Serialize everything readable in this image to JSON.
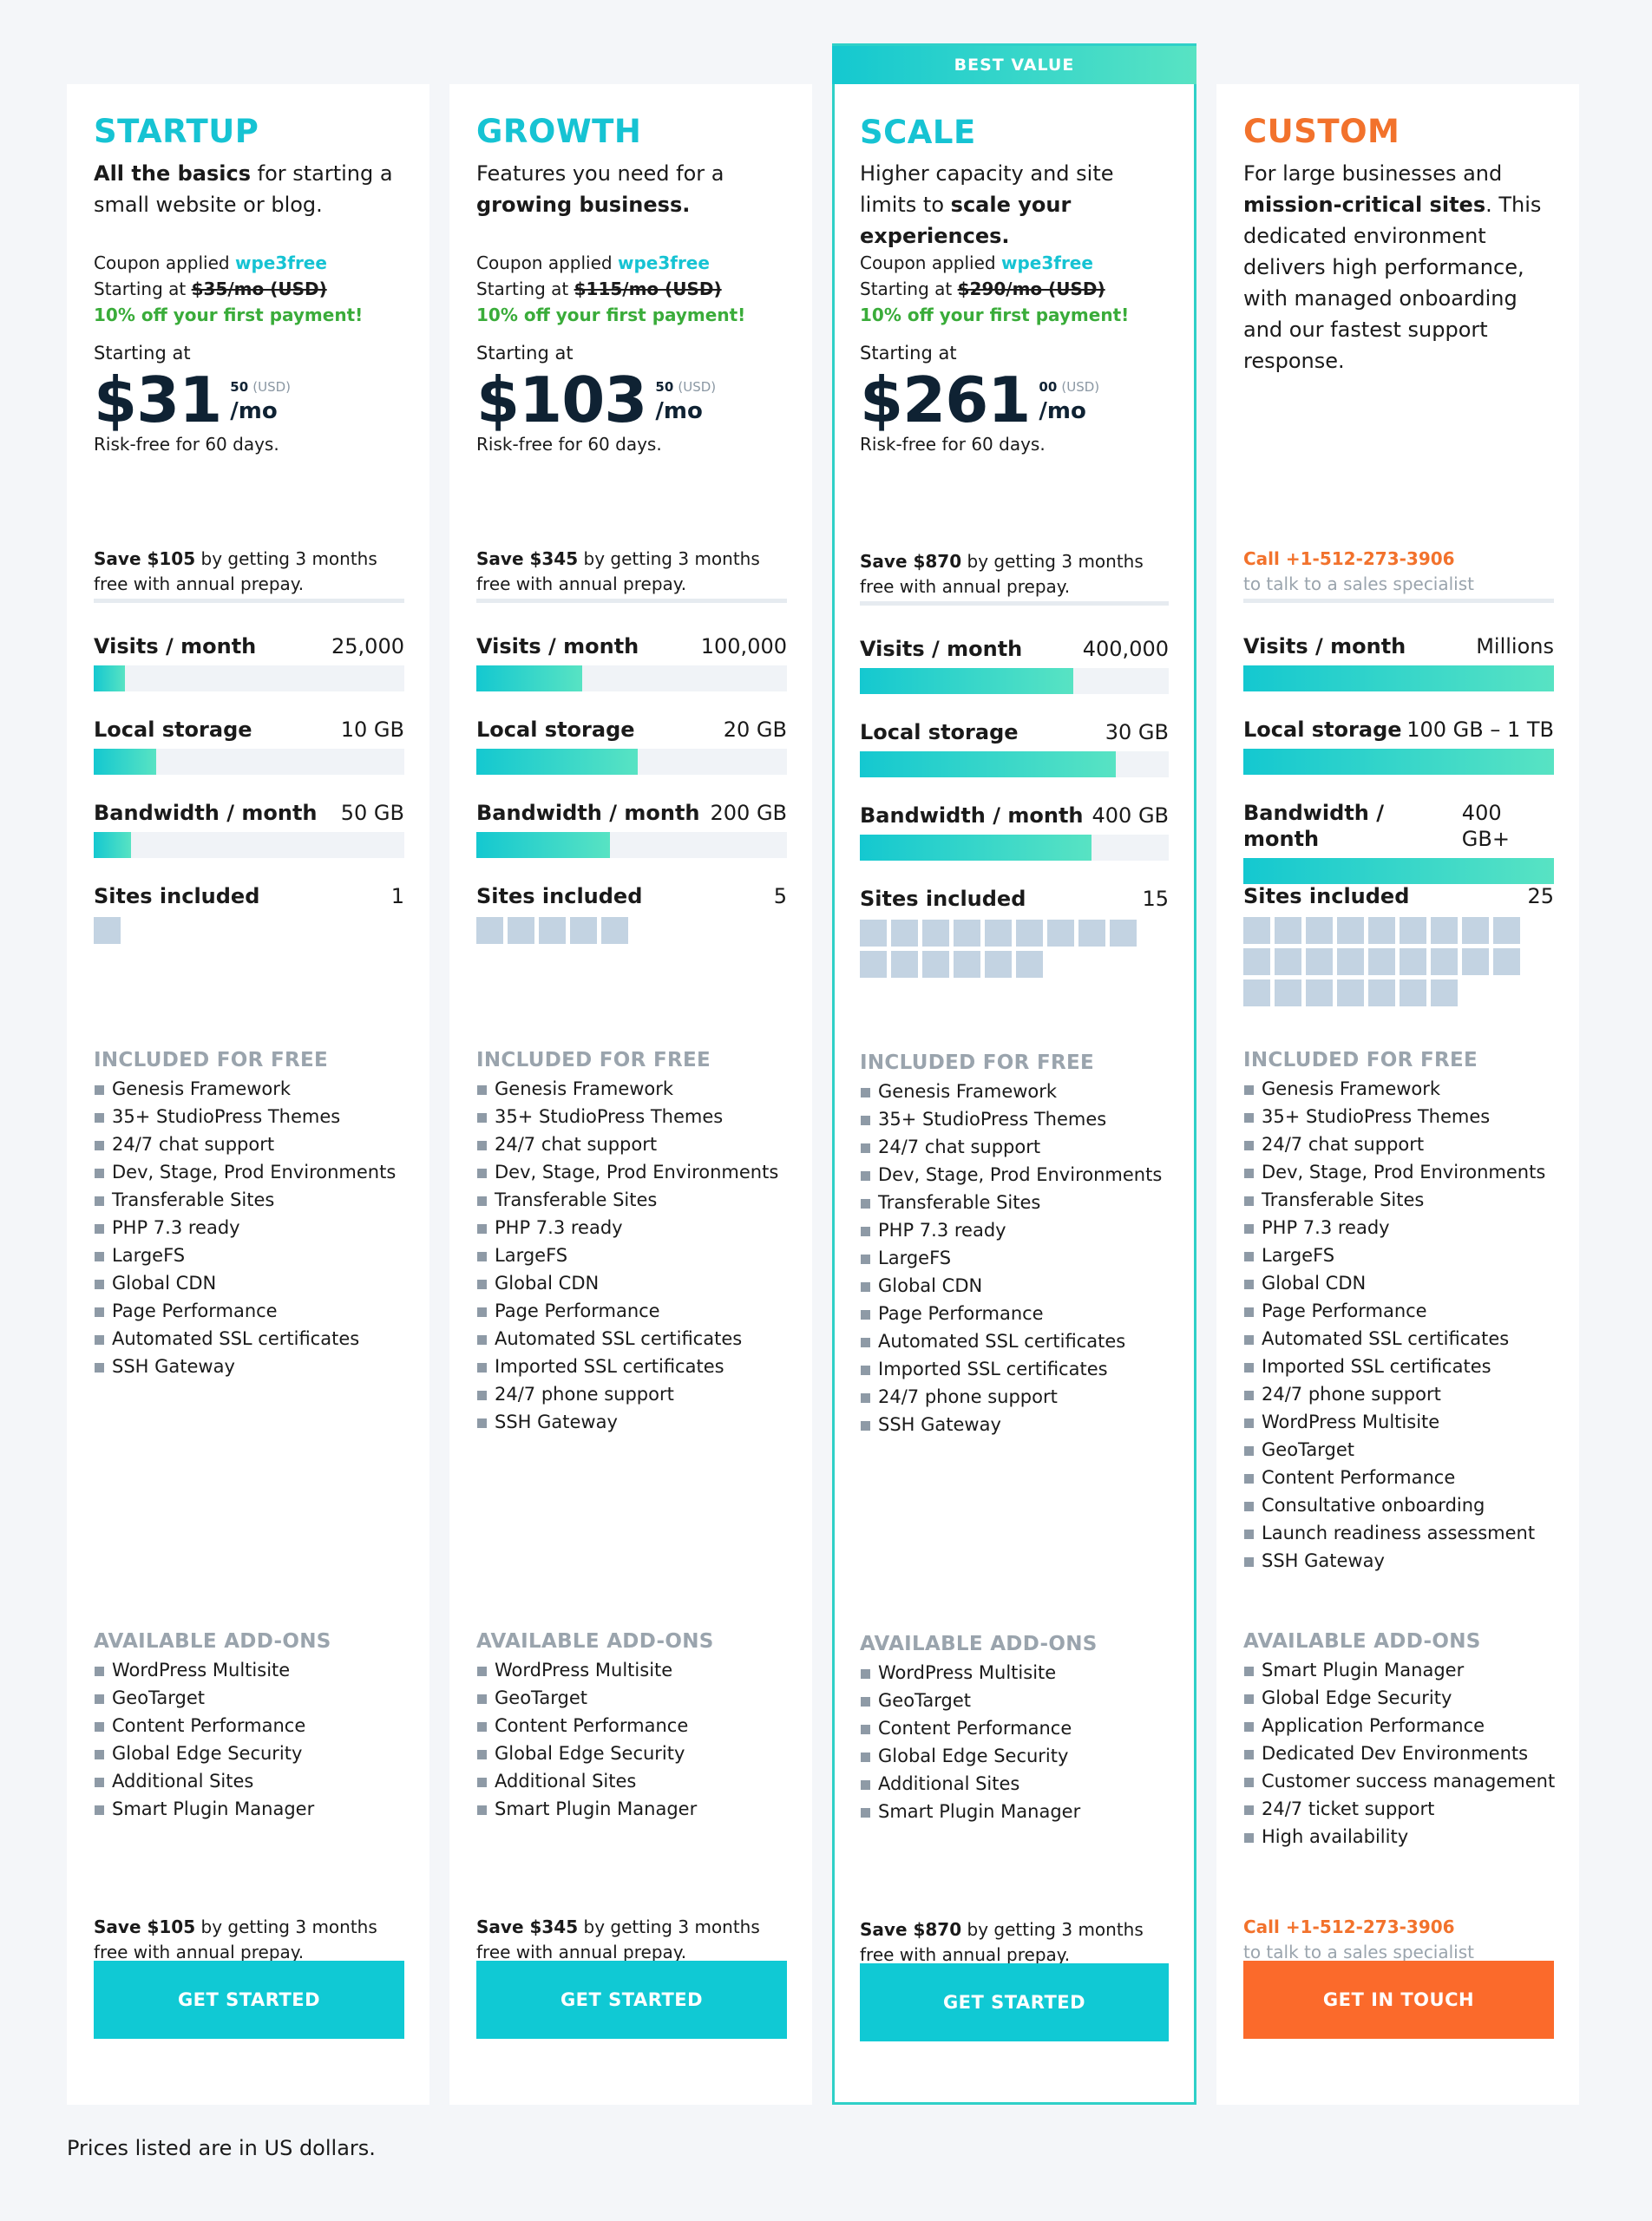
{
  "plans": [
    {
      "name": "STARTUP",
      "tagline_bold": "All the basics",
      "tagline_rest": " for starting a small website or blog.",
      "coupon_text": "Coupon applied ",
      "coupon_code": "wpe3free",
      "starting_text": "Starting at ",
      "old_price": "$35/mo (USD)",
      "discount": "10% off your first payment!",
      "starting_label": "Starting at",
      "price": "$31",
      "cents": "50",
      "currency": "(USD)",
      "per": "/mo",
      "riskfree": "Risk-free for 60 days.",
      "save_bold": "Save $105",
      "save_rest": " by getting 3 months free with annual prepay.",
      "visits_label": "Visits / month",
      "visits": "25,000",
      "visits_fill": 0.1,
      "storage_label": "Local storage",
      "storage": "10 GB",
      "storage_fill": 0.2,
      "bandwidth_label": "Bandwidth / month",
      "bandwidth": "50 GB",
      "bandwidth_fill": 0.12,
      "sites_label": "Sites included",
      "sites": "1",
      "sites_count": 1,
      "included_title": "INCLUDED FOR FREE",
      "included": [
        "Genesis Framework",
        "35+ StudioPress Themes",
        "24/7 chat support",
        "Dev, Stage, Prod Environments",
        "Transferable Sites",
        "PHP 7.3 ready",
        "LargeFS",
        "Global CDN",
        "Page Performance",
        "Automated SSL certificates",
        "SSH Gateway"
      ],
      "addons_title": "AVAILABLE ADD-ONS",
      "addons": [
        "WordPress Multisite",
        "GeoTarget",
        "Content Performance",
        "Global Edge Security",
        "Additional Sites",
        "Smart Plugin Manager"
      ],
      "cta": "GET STARTED"
    },
    {
      "name": "GROWTH",
      "tagline_pre": "Features you need for a ",
      "tagline_bold": "growing business.",
      "coupon_text": "Coupon applied ",
      "coupon_code": "wpe3free",
      "starting_text": "Starting at ",
      "old_price": "$115/mo (USD)",
      "discount": "10% off your first payment!",
      "starting_label": "Starting at",
      "price": "$103",
      "cents": "50",
      "currency": "(USD)",
      "per": "/mo",
      "riskfree": "Risk-free for 60 days.",
      "save_bold": "Save $345",
      "save_rest": " by getting 3 months free with annual prepay.",
      "visits_label": "Visits / month",
      "visits": "100,000",
      "visits_fill": 0.34,
      "storage_label": "Local storage",
      "storage": "20 GB",
      "storage_fill": 0.52,
      "bandwidth_label": "Bandwidth / month",
      "bandwidth": "200 GB",
      "bandwidth_fill": 0.43,
      "sites_label": "Sites included",
      "sites": "5",
      "sites_count": 5,
      "included_title": "INCLUDED FOR FREE",
      "included": [
        "Genesis Framework",
        "35+ StudioPress Themes",
        "24/7 chat support",
        "Dev, Stage, Prod Environments",
        "Transferable Sites",
        "PHP 7.3 ready",
        "LargeFS",
        "Global CDN",
        "Page Performance",
        "Automated SSL certificates",
        "Imported SSL certificates",
        "24/7 phone support",
        "SSH Gateway"
      ],
      "addons_title": "AVAILABLE ADD-ONS",
      "addons": [
        "WordPress Multisite",
        "GeoTarget",
        "Content Performance",
        "Global Edge Security",
        "Additional Sites",
        "Smart Plugin Manager"
      ],
      "cta": "GET STARTED"
    },
    {
      "badge": "BEST VALUE",
      "name": "SCALE",
      "tagline_pre": "Higher capacity and site limits to ",
      "tagline_bold": "scale your experiences.",
      "coupon_text": "Coupon applied ",
      "coupon_code": "wpe3free",
      "starting_text": "Starting at ",
      "old_price": "$290/mo (USD)",
      "discount": "10% off your first payment!",
      "starting_label": "Starting at",
      "price": "$261",
      "cents": "00",
      "currency": "(USD)",
      "per": "/mo",
      "riskfree": "Risk-free for 60 days.",
      "save_bold": "Save $870",
      "save_rest": " by getting 3 months free with annual prepay.",
      "visits_label": "Visits / month",
      "visits": "400,000",
      "visits_fill": 0.69,
      "storage_label": "Local storage",
      "storage": "30 GB",
      "storage_fill": 0.83,
      "bandwidth_label": "Bandwidth / month",
      "bandwidth": "400 GB",
      "bandwidth_fill": 0.75,
      "sites_label": "Sites included",
      "sites": "15",
      "sites_count": 15,
      "included_title": "INCLUDED FOR FREE",
      "included": [
        "Genesis Framework",
        "35+ StudioPress Themes",
        "24/7 chat support",
        "Dev, Stage, Prod Environments",
        "Transferable Sites",
        "PHP 7.3 ready",
        "LargeFS",
        "Global CDN",
        "Page Performance",
        "Automated SSL certificates",
        "Imported SSL certificates",
        "24/7 phone support",
        "SSH Gateway"
      ],
      "addons_title": "AVAILABLE ADD-ONS",
      "addons": [
        "WordPress Multisite",
        "GeoTarget",
        "Content Performance",
        "Global Edge Security",
        "Additional Sites",
        "Smart Plugin Manager"
      ],
      "cta": "GET STARTED"
    },
    {
      "name": "CUSTOM",
      "tagline_pre": "For large businesses and ",
      "tagline_bold": "mission-critical sites",
      "tagline_rest": ". This dedicated environment delivers high performance, with managed onboarding and our fastest support response.",
      "call_phone": "Call +1-512-273-3906",
      "call_sub": "to talk to a sales specialist",
      "visits_label": "Visits / month",
      "visits": "Millions",
      "visits_fill": 1,
      "storage_label": "Local storage",
      "storage": "100 GB – 1 TB",
      "storage_fill": 1,
      "bandwidth_label": "Bandwidth / month",
      "bandwidth": "400 GB+",
      "bandwidth_fill": 1,
      "sites_label": "Sites included",
      "sites": "25",
      "sites_count": 25,
      "included_title": "INCLUDED FOR FREE",
      "included": [
        "Genesis Framework",
        "35+ StudioPress Themes",
        "24/7 chat support",
        "Dev, Stage, Prod Environments",
        "Transferable Sites",
        "PHP 7.3 ready",
        "LargeFS",
        "Global CDN",
        "Page Performance",
        "Automated SSL certificates",
        "Imported SSL certificates",
        "24/7 phone support",
        "WordPress Multisite",
        "GeoTarget",
        "Content Performance",
        "Consultative onboarding",
        "Launch readiness assessment",
        "SSH Gateway"
      ],
      "addons_title": "AVAILABLE ADD-ONS",
      "addons": [
        "Smart Plugin Manager",
        "Global Edge Security",
        "Application Performance",
        "Dedicated Dev Environments",
        "Customer success management",
        "24/7 ticket support",
        "High availability"
      ],
      "cta": "GET IN TOUCH"
    }
  ],
  "footnote": "Prices listed are in US dollars.",
  "colors": {
    "accent": "#16c3d3",
    "cta": "#10c9d4",
    "orange": "#fb6a2b",
    "green": "#3aac3a"
  }
}
